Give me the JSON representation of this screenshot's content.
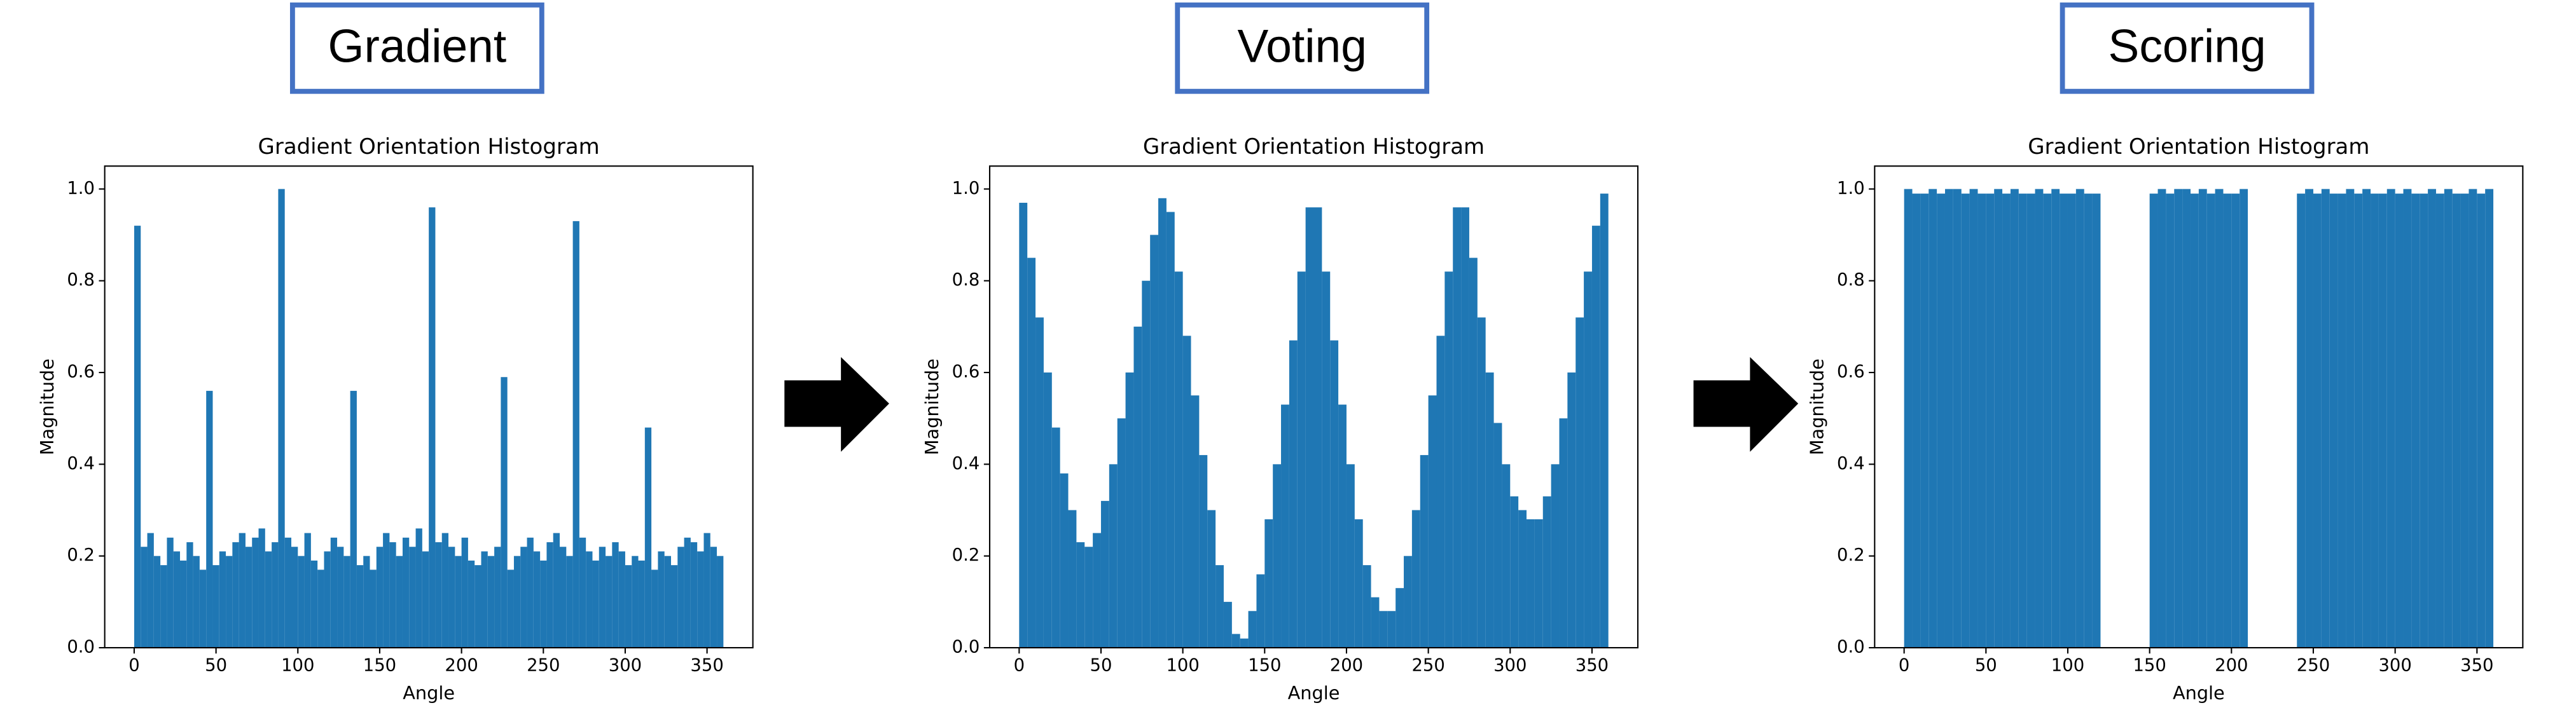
{
  "chart_data": [
    {
      "type": "histogram",
      "heading": "Gradient",
      "title": "Gradient Orientation Histogram",
      "xlabel": "Angle",
      "ylabel": "Magnitude",
      "color": "#1f77b4",
      "bins": [
        0,
        4,
        8,
        12,
        16,
        20,
        24,
        28,
        32,
        36,
        40,
        44,
        48,
        52,
        56,
        60,
        64,
        68,
        72,
        76,
        80,
        84,
        88,
        92,
        96,
        100,
        104,
        108,
        112,
        116,
        120,
        124,
        128,
        132,
        136,
        140,
        144,
        148,
        152,
        156,
        160,
        164,
        168,
        172,
        176,
        180,
        184,
        188,
        192,
        196,
        200,
        204,
        208,
        212,
        216,
        220,
        224,
        228,
        232,
        236,
        240,
        244,
        248,
        252,
        256,
        260,
        264,
        268,
        272,
        276,
        280,
        284,
        288,
        292,
        296,
        300,
        304,
        308,
        312,
        316,
        320,
        324,
        328,
        332,
        336,
        340,
        344,
        348,
        352,
        356,
        360
      ],
      "values": [
        0.92,
        0.22,
        0.25,
        0.2,
        0.18,
        0.24,
        0.21,
        0.19,
        0.23,
        0.2,
        0.17,
        0.56,
        0.18,
        0.21,
        0.2,
        0.23,
        0.25,
        0.22,
        0.24,
        0.26,
        0.21,
        0.23,
        1.0,
        0.24,
        0.22,
        0.2,
        0.25,
        0.19,
        0.17,
        0.21,
        0.24,
        0.22,
        0.2,
        0.56,
        0.18,
        0.2,
        0.17,
        0.22,
        0.25,
        0.23,
        0.2,
        0.24,
        0.22,
        0.26,
        0.21,
        0.96,
        0.23,
        0.25,
        0.22,
        0.2,
        0.24,
        0.19,
        0.18,
        0.21,
        0.2,
        0.22,
        0.59,
        0.17,
        0.2,
        0.22,
        0.24,
        0.21,
        0.19,
        0.23,
        0.25,
        0.22,
        0.2,
        0.93,
        0.24,
        0.21,
        0.19,
        0.22,
        0.2,
        0.23,
        0.21,
        0.18,
        0.2,
        0.19,
        0.48,
        0.17,
        0.21,
        0.2,
        0.18,
        0.22,
        0.24,
        0.23,
        0.21,
        0.25,
        0.22,
        0.2
      ],
      "xlim": [
        -18,
        378
      ],
      "ylim": [
        0,
        1.05
      ],
      "xticks": [
        0,
        50,
        100,
        150,
        200,
        250,
        300,
        350
      ],
      "yticks": [
        {
          "value": 0,
          "label": "0.0"
        },
        {
          "value": 0.2,
          "label": "0.2"
        },
        {
          "value": 0.4,
          "label": "0.4"
        },
        {
          "value": 0.6,
          "label": "0.6"
        },
        {
          "value": 0.8,
          "label": "0.8"
        },
        {
          "value": 1,
          "label": "1.0"
        }
      ]
    },
    {
      "type": "histogram",
      "heading": "Voting",
      "title": "Gradient Orientation Histogram",
      "xlabel": "Angle",
      "ylabel": "Magnitude",
      "color": "#1f77b4",
      "bins": [
        0,
        5,
        10,
        15,
        20,
        25,
        30,
        35,
        40,
        45,
        50,
        55,
        60,
        65,
        70,
        75,
        80,
        85,
        90,
        95,
        100,
        105,
        110,
        115,
        120,
        125,
        130,
        135,
        140,
        145,
        150,
        155,
        160,
        165,
        170,
        175,
        180,
        185,
        190,
        195,
        200,
        205,
        210,
        215,
        220,
        225,
        230,
        235,
        240,
        245,
        250,
        255,
        260,
        265,
        270,
        275,
        280,
        285,
        290,
        295,
        300,
        305,
        310,
        315,
        320,
        325,
        330,
        335,
        340,
        345,
        350,
        355,
        360
      ],
      "values": [
        0.97,
        0.85,
        0.72,
        0.6,
        0.48,
        0.38,
        0.3,
        0.23,
        0.22,
        0.25,
        0.32,
        0.4,
        0.5,
        0.6,
        0.7,
        0.8,
        0.9,
        0.98,
        0.95,
        0.82,
        0.68,
        0.55,
        0.42,
        0.3,
        0.18,
        0.1,
        0.03,
        0.02,
        0.08,
        0.16,
        0.28,
        0.4,
        0.53,
        0.67,
        0.82,
        0.96,
        0.96,
        0.82,
        0.67,
        0.53,
        0.4,
        0.28,
        0.18,
        0.11,
        0.08,
        0.08,
        0.13,
        0.2,
        0.3,
        0.42,
        0.55,
        0.68,
        0.82,
        0.96,
        0.96,
        0.85,
        0.72,
        0.6,
        0.49,
        0.4,
        0.33,
        0.3,
        0.28,
        0.28,
        0.33,
        0.4,
        0.5,
        0.6,
        0.72,
        0.82,
        0.92,
        0.99
      ],
      "xlim": [
        -18,
        378
      ],
      "ylim": [
        0,
        1.05
      ],
      "xticks": [
        0,
        50,
        100,
        150,
        200,
        250,
        300,
        350
      ],
      "yticks": [
        {
          "value": 0,
          "label": "0.0"
        },
        {
          "value": 0.2,
          "label": "0.2"
        },
        {
          "value": 0.4,
          "label": "0.4"
        },
        {
          "value": 0.6,
          "label": "0.6"
        },
        {
          "value": 0.8,
          "label": "0.8"
        },
        {
          "value": 1,
          "label": "1.0"
        }
      ]
    },
    {
      "type": "histogram",
      "heading": "Scoring",
      "title": "Gradient Orientation Histogram",
      "xlabel": "Angle",
      "ylabel": "Magnitude",
      "color": "#1f77b4",
      "bins": [
        0,
        5,
        10,
        15,
        20,
        25,
        30,
        35,
        40,
        45,
        50,
        55,
        60,
        65,
        70,
        75,
        80,
        85,
        90,
        95,
        100,
        105,
        110,
        115,
        120,
        125,
        130,
        135,
        140,
        145,
        150,
        155,
        160,
        165,
        170,
        175,
        180,
        185,
        190,
        195,
        200,
        205,
        210,
        215,
        220,
        225,
        230,
        235,
        240,
        245,
        250,
        255,
        260,
        265,
        270,
        275,
        280,
        285,
        290,
        295,
        300,
        305,
        310,
        315,
        320,
        325,
        330,
        335,
        340,
        345,
        350,
        355,
        360
      ],
      "values": [
        1.0,
        0.99,
        0.99,
        1.0,
        0.99,
        1.0,
        1.0,
        0.99,
        1.0,
        0.99,
        0.99,
        1.0,
        0.99,
        1.0,
        0.99,
        0.99,
        1.0,
        0.99,
        1.0,
        0.99,
        0.99,
        1.0,
        0.99,
        0.99,
        0,
        0,
        0,
        0,
        0,
        0,
        0.99,
        1.0,
        0.99,
        1.0,
        1.0,
        0.99,
        1.0,
        0.99,
        1.0,
        0.99,
        0.99,
        1.0,
        0,
        0,
        0,
        0,
        0,
        0,
        0.99,
        1.0,
        0.99,
        1.0,
        0.99,
        0.99,
        1.0,
        0.99,
        1.0,
        0.99,
        0.99,
        1.0,
        0.99,
        1.0,
        0.99,
        0.99,
        1.0,
        0.99,
        1.0,
        0.99,
        0.99,
        1.0,
        0.99,
        1.0
      ],
      "xlim": [
        -18,
        378
      ],
      "ylim": [
        0,
        1.05
      ],
      "xticks": [
        0,
        50,
        100,
        150,
        200,
        250,
        300,
        350
      ],
      "yticks": [
        {
          "value": 0,
          "label": "0.0"
        },
        {
          "value": 0.2,
          "label": "0.2"
        },
        {
          "value": 0.4,
          "label": "0.4"
        },
        {
          "value": 0.6,
          "label": "0.6"
        },
        {
          "value": 0.8,
          "label": "0.8"
        },
        {
          "value": 1,
          "label": "1.0"
        }
      ]
    }
  ]
}
